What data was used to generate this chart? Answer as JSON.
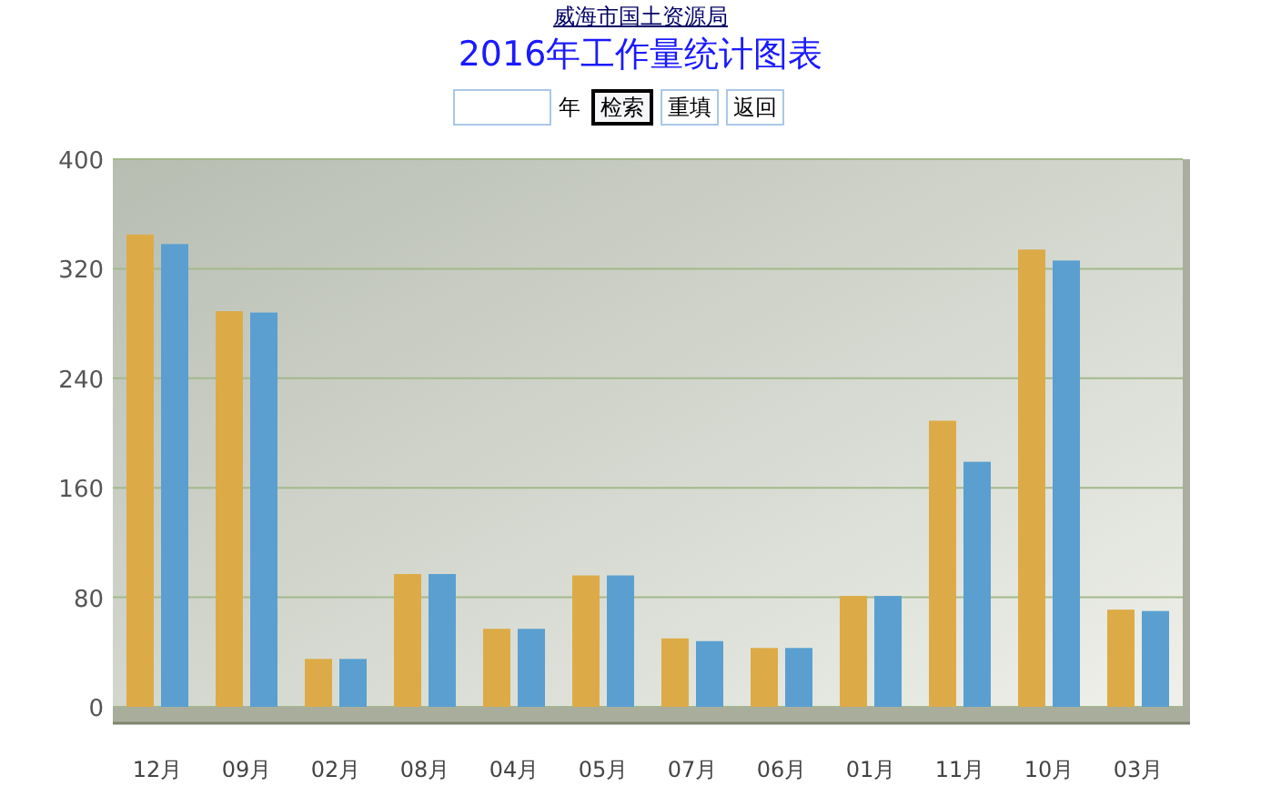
{
  "chart_data": {
    "type": "bar",
    "title": "2016年工作量统计图表",
    "annotations": [
      "威海市国土资源局",
      "年",
      "检索",
      "重填",
      "返回"
    ],
    "categories": [
      "12月",
      "09月",
      "02月",
      "08月",
      "04月",
      "05月",
      "07月",
      "06月",
      "01月",
      "11月",
      "10月",
      "03月"
    ],
    "series": [
      {
        "color": "#dcab47",
        "values": [
          345,
          289,
          35,
          97,
          57,
          96,
          50,
          43,
          81,
          209,
          334,
          71
        ]
      },
      {
        "color": "#5a9fd0",
        "values": [
          338,
          288,
          35,
          97,
          57,
          96,
          48,
          43,
          81,
          179,
          326,
          70
        ]
      }
    ],
    "ylim": [
      0,
      400
    ],
    "yticks": [
      0,
      80,
      160,
      240,
      320,
      400
    ],
    "grid": "y"
  }
}
